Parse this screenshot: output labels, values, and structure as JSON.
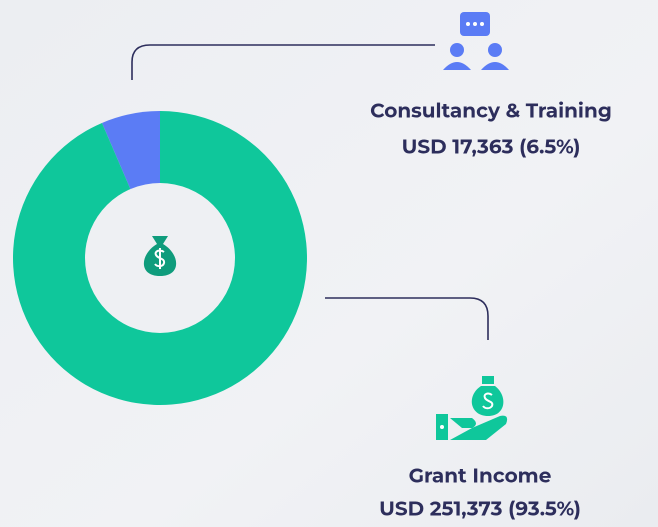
{
  "chart_data": {
    "type": "pie",
    "donut": true,
    "categories": [
      "Consultancy & Training",
      "Grant Income"
    ],
    "values": [
      17363,
      251373
    ],
    "value_labels": [
      "USD 17,363 (6.5%)",
      "USD 251,373 (93.5%)"
    ],
    "colors": [
      "#5b7cf5",
      "#0fc79b"
    ]
  }
}
